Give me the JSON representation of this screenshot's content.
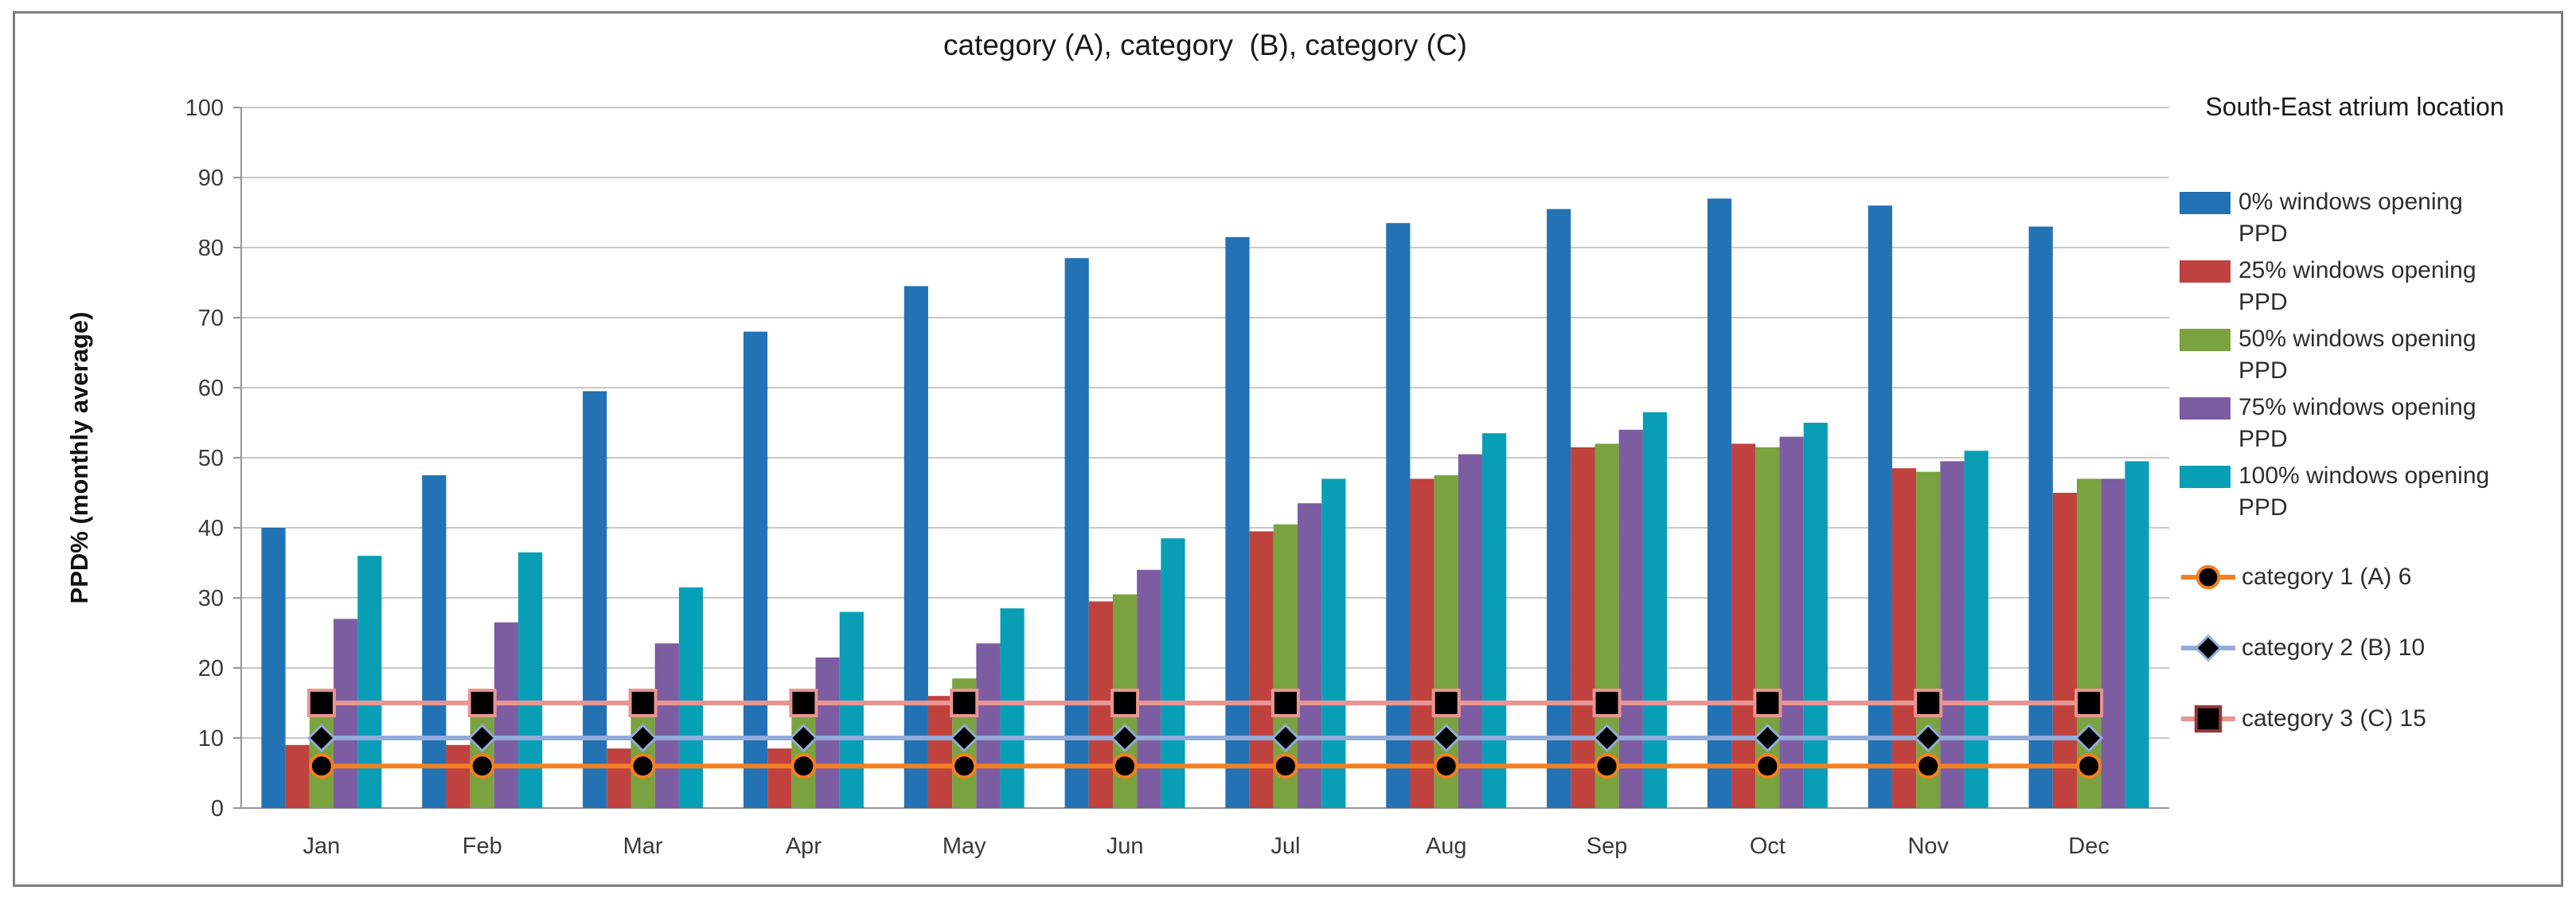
{
  "chart_data": {
    "type": "bar",
    "title": "category (A), category  (B), category (C)",
    "ylabel": "PPD% (monthly average)",
    "ylim": [
      0,
      100
    ],
    "yticks": [
      0,
      10,
      20,
      30,
      40,
      50,
      60,
      70,
      80,
      90,
      100
    ],
    "grid": "horizontal",
    "legend_position": "right",
    "legend_title": "South-East atrium location",
    "categories": [
      "Jan",
      "Feb",
      "Mar",
      "Apr",
      "May",
      "Jun",
      "Jul",
      "Aug",
      "Sep",
      "Oct",
      "Nov",
      "Dec"
    ],
    "series": [
      {
        "name": "0% windows opening PPD",
        "type": "bar",
        "color": "#2372B4",
        "values": [
          40,
          47.5,
          59.5,
          68,
          74.5,
          78.5,
          81.5,
          83.5,
          85.5,
          87,
          86,
          83
        ]
      },
      {
        "name": "25% windows opening PPD",
        "type": "bar",
        "color": "#BF423E",
        "values": [
          9,
          9,
          8.5,
          8.5,
          16,
          29.5,
          39.5,
          47,
          51.5,
          52,
          48.5,
          45
        ]
      },
      {
        "name": "50% windows opening PPD",
        "type": "bar",
        "color": "#7AA23E",
        "values": [
          17,
          17,
          16.5,
          14.5,
          18.5,
          30.5,
          40.5,
          47.5,
          52,
          51.5,
          48,
          47
        ]
      },
      {
        "name": "75% windows opening PPD",
        "type": "bar",
        "color": "#7C5DA2",
        "values": [
          27,
          26.5,
          23.5,
          21.5,
          23.5,
          34,
          43.5,
          50.5,
          54,
          53,
          49.5,
          47
        ]
      },
      {
        "name": "100% windows opening PPD",
        "type": "bar",
        "color": "#089FB6",
        "values": [
          36,
          36.5,
          31.5,
          28,
          28.5,
          38.5,
          47,
          53.5,
          56.5,
          55,
          51,
          49.5
        ]
      },
      {
        "name": "category 1 (A) 6",
        "type": "line",
        "constant_value": 6,
        "line_color": "#F28021",
        "marker": "circle",
        "marker_fill": "#000000"
      },
      {
        "name": "category 2 (B) 10",
        "type": "line",
        "constant_value": 10,
        "line_color": "#93ACDB",
        "marker": "diamond",
        "marker_fill": "#000000"
      },
      {
        "name": "category 3 (C) 15",
        "type": "line",
        "constant_value": 15,
        "line_color": "#E99593",
        "marker": "square",
        "marker_fill": "#000000"
      }
    ],
    "style": {
      "gridline_color": "#C8C8C8",
      "axis_color": "#969696",
      "text_color": "#3a3a3a",
      "outer_border_color": "#7f7f7f",
      "background": "#ffffff"
    }
  }
}
